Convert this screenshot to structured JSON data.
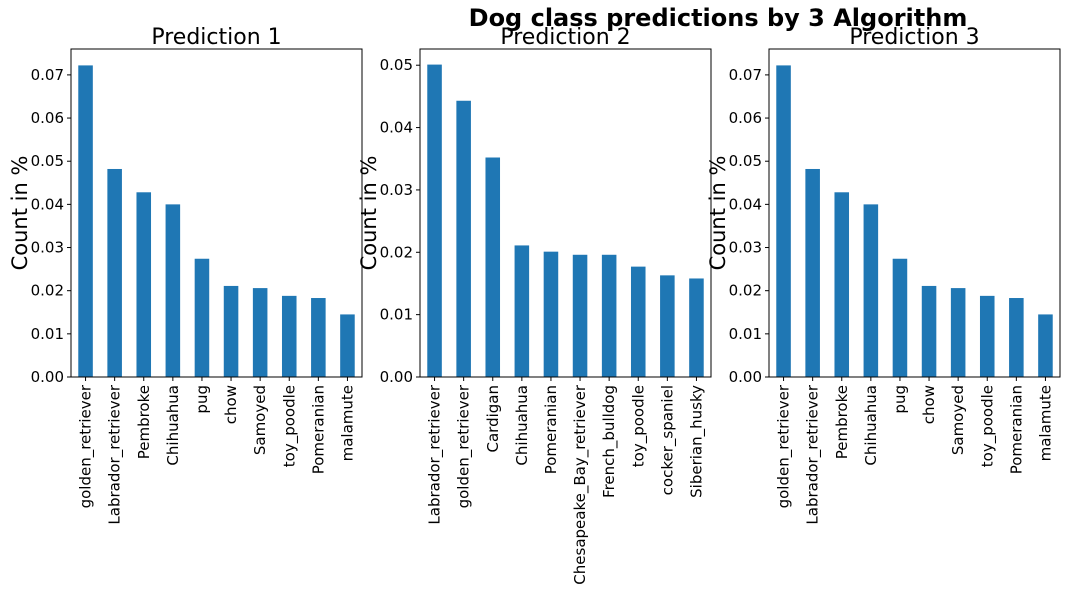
{
  "figure_title": "Dog class predictions by 3 Algorithm",
  "chart_data": [
    {
      "type": "bar",
      "title": "Prediction 1",
      "xlabel": "",
      "ylabel": "Count in %",
      "ylim": [
        0,
        0.076
      ],
      "yticks": [
        "0.00",
        "0.01",
        "0.02",
        "0.03",
        "0.04",
        "0.05",
        "0.06",
        "0.07"
      ],
      "categories": [
        "golden_retriever",
        "Labrador_retriever",
        "Pembroke",
        "Chihuahua",
        "pug",
        "chow",
        "Samoyed",
        "toy_poodle",
        "Pomeranian",
        "malamute"
      ],
      "values": [
        0.0722,
        0.0482,
        0.0428,
        0.04,
        0.0274,
        0.0211,
        0.0206,
        0.0188,
        0.0183,
        0.0145
      ],
      "color": "#1f77b4",
      "grid": false
    },
    {
      "type": "bar",
      "title": "Prediction 2",
      "xlabel": "",
      "ylabel": "Count in %",
      "ylim": [
        0,
        0.0526
      ],
      "yticks": [
        "0.00",
        "0.01",
        "0.02",
        "0.03",
        "0.04",
        "0.05"
      ],
      "categories": [
        "Labrador_retriever",
        "golden_retriever",
        "Cardigan",
        "Chihuahua",
        "Pomeranian",
        "Chesapeake_Bay_retriever",
        "French_bulldog",
        "toy_poodle",
        "cocker_spaniel",
        "Siberian_husky"
      ],
      "values": [
        0.0501,
        0.0443,
        0.0352,
        0.0211,
        0.0201,
        0.0196,
        0.0196,
        0.0177,
        0.0163,
        0.0158
      ],
      "color": "#1f77b4",
      "grid": false
    },
    {
      "type": "bar",
      "title": "Prediction 3",
      "xlabel": "",
      "ylabel": "Count in %",
      "ylim": [
        0,
        0.076
      ],
      "yticks": [
        "0.00",
        "0.01",
        "0.02",
        "0.03",
        "0.04",
        "0.05",
        "0.06",
        "0.07"
      ],
      "categories": [
        "golden_retriever",
        "Labrador_retriever",
        "Pembroke",
        "Chihuahua",
        "pug",
        "chow",
        "Samoyed",
        "toy_poodle",
        "Pomeranian",
        "malamute"
      ],
      "values": [
        0.0722,
        0.0482,
        0.0428,
        0.04,
        0.0274,
        0.0211,
        0.0206,
        0.0188,
        0.0183,
        0.0145
      ],
      "color": "#1f77b4",
      "grid": false
    }
  ]
}
